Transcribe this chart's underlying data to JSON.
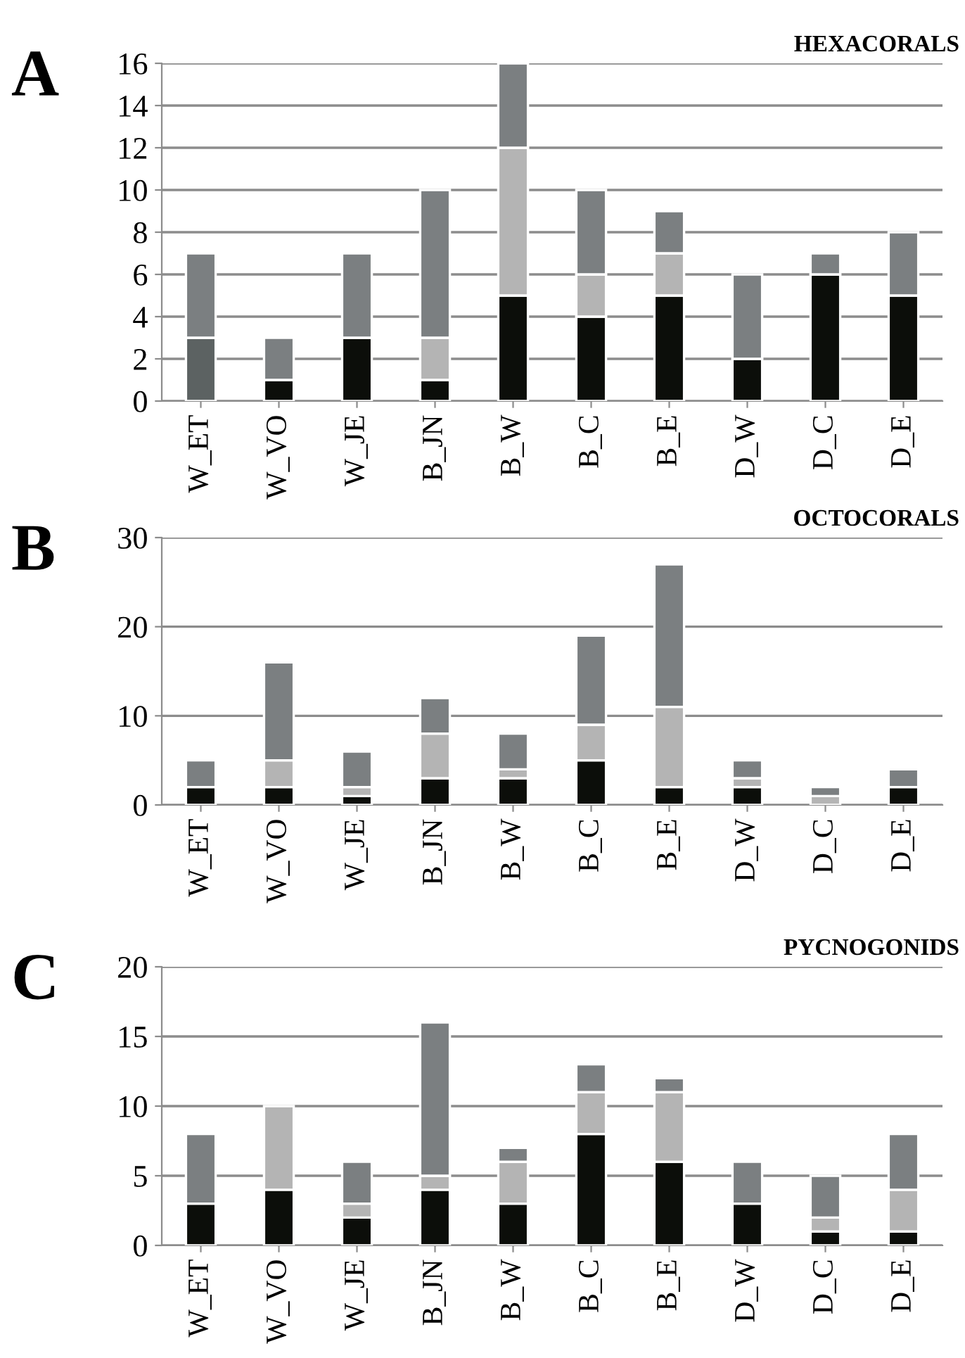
{
  "chart_data": [
    {
      "type": "bar",
      "title": "A",
      "subtitle": "HEXACORALS",
      "stacked": true,
      "grid": "y",
      "categories": [
        "W_ET",
        "W_VO",
        "W_JE",
        "B_JN",
        "B_W",
        "B_C",
        "B_E",
        "D_W",
        "D_C",
        "D_E"
      ],
      "series": [
        {
          "colors": [
            "#5c6262",
            "#0c0e0a",
            "#0c0e0a",
            "#0c0e0a",
            "#0c0e0a",
            "#0c0e0a",
            "#0c0e0a",
            "#0c0e0a",
            "#0c0e0a",
            "#0c0e0a"
          ],
          "values": [
            3,
            1,
            3,
            1,
            5,
            4,
            5,
            2,
            6,
            5
          ]
        },
        {
          "color": "#b4b4b4",
          "values": [
            0,
            0,
            0,
            2,
            7,
            2,
            2,
            0,
            0,
            0
          ]
        },
        {
          "color": "#7b7f81",
          "values": [
            4,
            2,
            4,
            7,
            4,
            4,
            2,
            4,
            1,
            3
          ]
        }
      ],
      "ylim": [
        0,
        16
      ],
      "yticks": [
        0,
        2,
        4,
        6,
        8,
        10,
        12,
        14,
        16
      ]
    },
    {
      "type": "bar",
      "title": "B",
      "subtitle": "OCTOCORALS",
      "stacked": true,
      "grid": "y",
      "categories": [
        "W_ET",
        "W_VO",
        "W_JE",
        "B_JN",
        "B_W",
        "B_C",
        "B_E",
        "D_W",
        "D_C",
        "D_E"
      ],
      "series": [
        {
          "color": "#0c0e0a",
          "values": [
            2,
            2,
            1,
            3,
            3,
            5,
            2,
            2,
            0,
            2
          ]
        },
        {
          "color": "#b4b4b4",
          "values": [
            0,
            3,
            1,
            5,
            1,
            4,
            9,
            1,
            1,
            0
          ]
        },
        {
          "color": "#7b7f81",
          "values": [
            3,
            11,
            4,
            4,
            4,
            10,
            16,
            2,
            1,
            2
          ]
        }
      ],
      "ylim": [
        0,
        30
      ],
      "yticks": [
        0,
        10,
        20,
        30
      ]
    },
    {
      "type": "bar",
      "title": "C",
      "subtitle": "PYCNOGONIDS",
      "stacked": true,
      "grid": "y",
      "categories": [
        "W_ET",
        "W_VO",
        "W_JE",
        "B_JN",
        "B_W",
        "B_C",
        "B_E",
        "D_W",
        "D_C",
        "D_E"
      ],
      "series": [
        {
          "color": "#0c0e0a",
          "values": [
            3,
            4,
            2,
            4,
            3,
            8,
            6,
            3,
            1,
            1
          ]
        },
        {
          "color": "#b4b4b4",
          "values": [
            0,
            6,
            1,
            1,
            3,
            3,
            5,
            0,
            1,
            3
          ]
        },
        {
          "color": "#7b7f81",
          "values": [
            5,
            0,
            3,
            11,
            1,
            2,
            1,
            3,
            3,
            4
          ]
        }
      ],
      "ylim": [
        0,
        20
      ],
      "yticks": [
        0,
        5,
        10,
        15,
        20
      ]
    }
  ]
}
